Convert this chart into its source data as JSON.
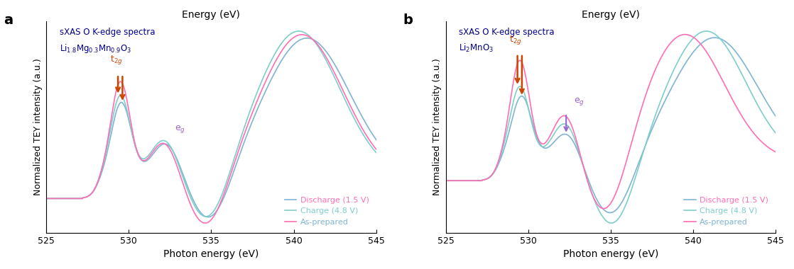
{
  "xlim": [
    525,
    545
  ],
  "xticks": [
    525,
    530,
    535,
    540,
    545
  ],
  "xlabel": "Photon energy (eV)",
  "ylabel": "Normalized TEY intensity (a.u.)",
  "top_xlabel": "Energy (eV)",
  "legend_labels": [
    "As-prepared",
    "Charge (4.8 V)",
    "Discharge (1.5 V)"
  ],
  "colors": {
    "as_prepared": "#FF6EB4",
    "charge": "#7ECECA",
    "discharge": "#7EB4D4"
  },
  "t2g_label": "t$_{2g}$",
  "eg_label": "e$_g$",
  "panel_labels": [
    "a",
    "b"
  ],
  "arrow_color_t2g": "#CC4400",
  "arrow_color_eg": "#9966CC"
}
